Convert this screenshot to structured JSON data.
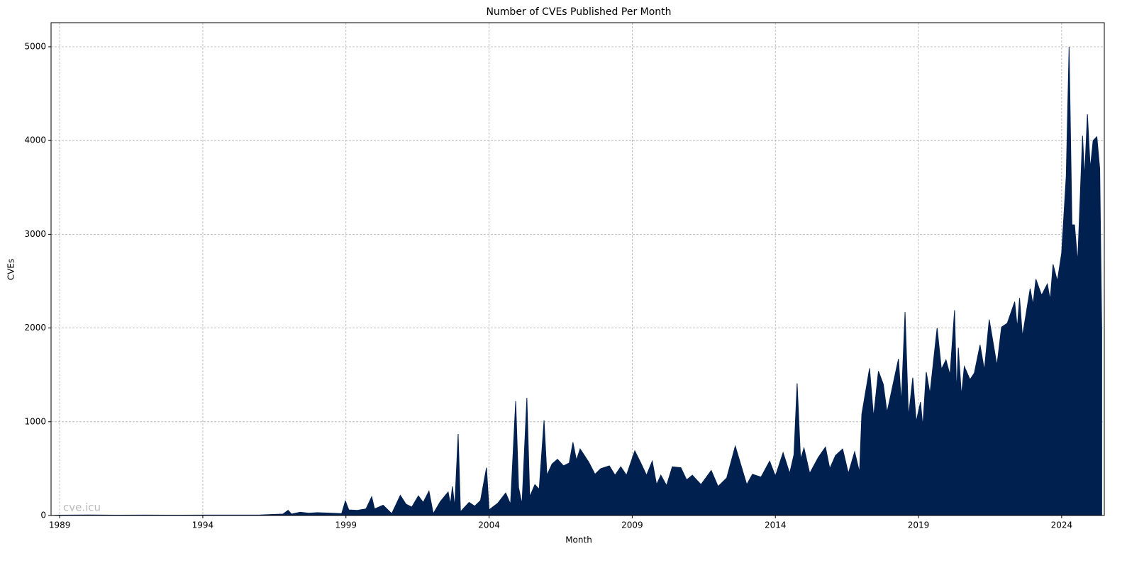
{
  "chart_data": {
    "type": "area",
    "title": "Number of CVEs Published Per Month",
    "xlabel": "Month",
    "ylabel": "CVEs",
    "watermark": "cve.icu",
    "color": "#002050",
    "grid": true,
    "x": [
      1988.7,
      1989.0,
      1990.0,
      1991.0,
      1992.0,
      1993.0,
      1994.0,
      1995.0,
      1996.0,
      1996.8,
      1996.98,
      1997.1,
      1997.4,
      1997.7,
      1998.0,
      1998.5,
      1998.85,
      1998.98,
      1999.1,
      1999.4,
      1999.7,
      1999.9,
      2000.0,
      2000.3,
      2000.6,
      2000.9,
      2001.1,
      2001.3,
      2001.53,
      2001.7,
      2001.9,
      2002.05,
      2002.3,
      2002.57,
      2002.65,
      2002.72,
      2002.8,
      2002.92,
      2003.0,
      2003.3,
      2003.5,
      2003.7,
      2003.91,
      2004.0,
      2004.3,
      2004.58,
      2004.75,
      2004.93,
      2005.03,
      2005.15,
      2005.32,
      2005.42,
      2005.6,
      2005.75,
      2005.92,
      2006.02,
      2006.2,
      2006.39,
      2006.6,
      2006.8,
      2006.93,
      2007.05,
      2007.18,
      2007.48,
      2007.7,
      2007.9,
      2008.2,
      2008.4,
      2008.6,
      2008.8,
      2009.09,
      2009.3,
      2009.5,
      2009.7,
      2009.85,
      2010.0,
      2010.2,
      2010.4,
      2010.7,
      2010.9,
      2011.1,
      2011.4,
      2011.76,
      2012.0,
      2012.3,
      2012.6,
      2013.0,
      2013.2,
      2013.5,
      2013.8,
      2014.0,
      2014.27,
      2014.5,
      2014.65,
      2014.76,
      2014.88,
      2015.0,
      2015.2,
      2015.5,
      2015.75,
      2015.9,
      2016.1,
      2016.35,
      2016.55,
      2016.77,
      2016.94,
      2017.02,
      2017.29,
      2017.43,
      2017.6,
      2017.77,
      2017.9,
      2018.3,
      2018.4,
      2018.53,
      2018.65,
      2018.8,
      2018.92,
      2019.07,
      2019.15,
      2019.27,
      2019.4,
      2019.65,
      2019.8,
      2019.96,
      2020.1,
      2020.26,
      2020.33,
      2020.39,
      2020.5,
      2020.6,
      2020.8,
      2020.95,
      2021.15,
      2021.3,
      2021.47,
      2021.74,
      2021.9,
      2022.1,
      2022.36,
      2022.45,
      2022.53,
      2022.63,
      2022.9,
      2023.0,
      2023.1,
      2023.3,
      2023.5,
      2023.6,
      2023.7,
      2023.85,
      2024.0,
      2024.16,
      2024.26,
      2024.36,
      2024.45,
      2024.56,
      2024.73,
      2024.8,
      2024.9,
      2025.0,
      2025.1,
      2025.23,
      2025.33,
      2025.4
    ],
    "values": [
      0,
      4,
      6,
      4,
      5,
      4,
      5,
      5,
      6,
      15,
      55,
      15,
      35,
      25,
      30,
      25,
      20,
      155,
      60,
      55,
      70,
      200,
      70,
      110,
      20,
      215,
      120,
      90,
      210,
      140,
      260,
      20,
      150,
      250,
      120,
      310,
      90,
      870,
      40,
      140,
      100,
      160,
      510,
      60,
      130,
      240,
      120,
      1220,
      300,
      120,
      1255,
      200,
      330,
      280,
      1015,
      430,
      550,
      600,
      530,
      560,
      780,
      590,
      710,
      570,
      440,
      500,
      530,
      430,
      520,
      430,
      690,
      560,
      430,
      580,
      330,
      430,
      320,
      520,
      510,
      380,
      430,
      330,
      480,
      310,
      400,
      740,
      330,
      440,
      410,
      580,
      420,
      670,
      450,
      650,
      1410,
      600,
      720,
      450,
      620,
      730,
      500,
      640,
      710,
      450,
      680,
      460,
      1080,
      1570,
      1050,
      1540,
      1400,
      1100,
      1670,
      1200,
      2170,
      1050,
      1470,
      1000,
      1210,
      950,
      1530,
      1300,
      2000,
      1560,
      1660,
      1500,
      2190,
      1300,
      1790,
      1280,
      1590,
      1450,
      1520,
      1820,
      1550,
      2090,
      1600,
      2010,
      2050,
      2280,
      2000,
      2320,
      1910,
      2420,
      2250,
      2520,
      2350,
      2470,
      2300,
      2680,
      2500,
      2800,
      3620,
      5000,
      3100,
      3100,
      2700,
      4050,
      3600,
      4280,
      3700,
      4000,
      4040,
      3700,
      1990
    ],
    "xlim": [
      1988.7,
      2025.49
    ],
    "xticks": [
      1989,
      1994,
      1999,
      2004,
      2009,
      2014,
      2019,
      2024
    ],
    "ylim": [
      0,
      5257
    ],
    "yticks": [
      0,
      1000,
      2000,
      3000,
      4000,
      5000
    ]
  }
}
